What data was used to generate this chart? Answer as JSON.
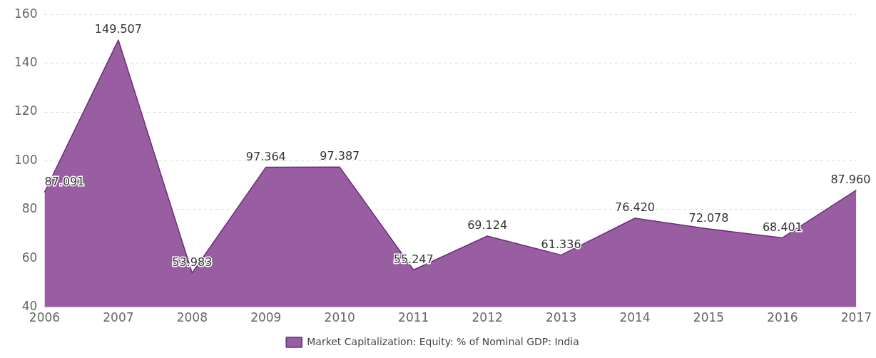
{
  "chart_data": {
    "type": "area",
    "categories": [
      "2006",
      "2007",
      "2008",
      "2009",
      "2010",
      "2011",
      "2012",
      "2013",
      "2014",
      "2015",
      "2016",
      "2017"
    ],
    "series": [
      {
        "name": "Market Capitalization: Equity: % of Nominal GDP: India",
        "color": "#995ea2",
        "values": [
          87.091,
          149.507,
          53.983,
          97.364,
          97.387,
          55.247,
          69.124,
          61.336,
          76.42,
          72.078,
          68.401,
          87.96
        ]
      }
    ],
    "value_labels": [
      "87.091",
      "149.507",
      "53.983",
      "97.364",
      "97.387",
      "55.247",
      "69.124",
      "61.336",
      "76.420",
      "72.078",
      "68.401",
      "87.960"
    ],
    "ylim": [
      40,
      160
    ],
    "yticks": [
      40,
      60,
      80,
      100,
      120,
      140,
      160
    ],
    "grid": "y",
    "legend": "bottom"
  }
}
